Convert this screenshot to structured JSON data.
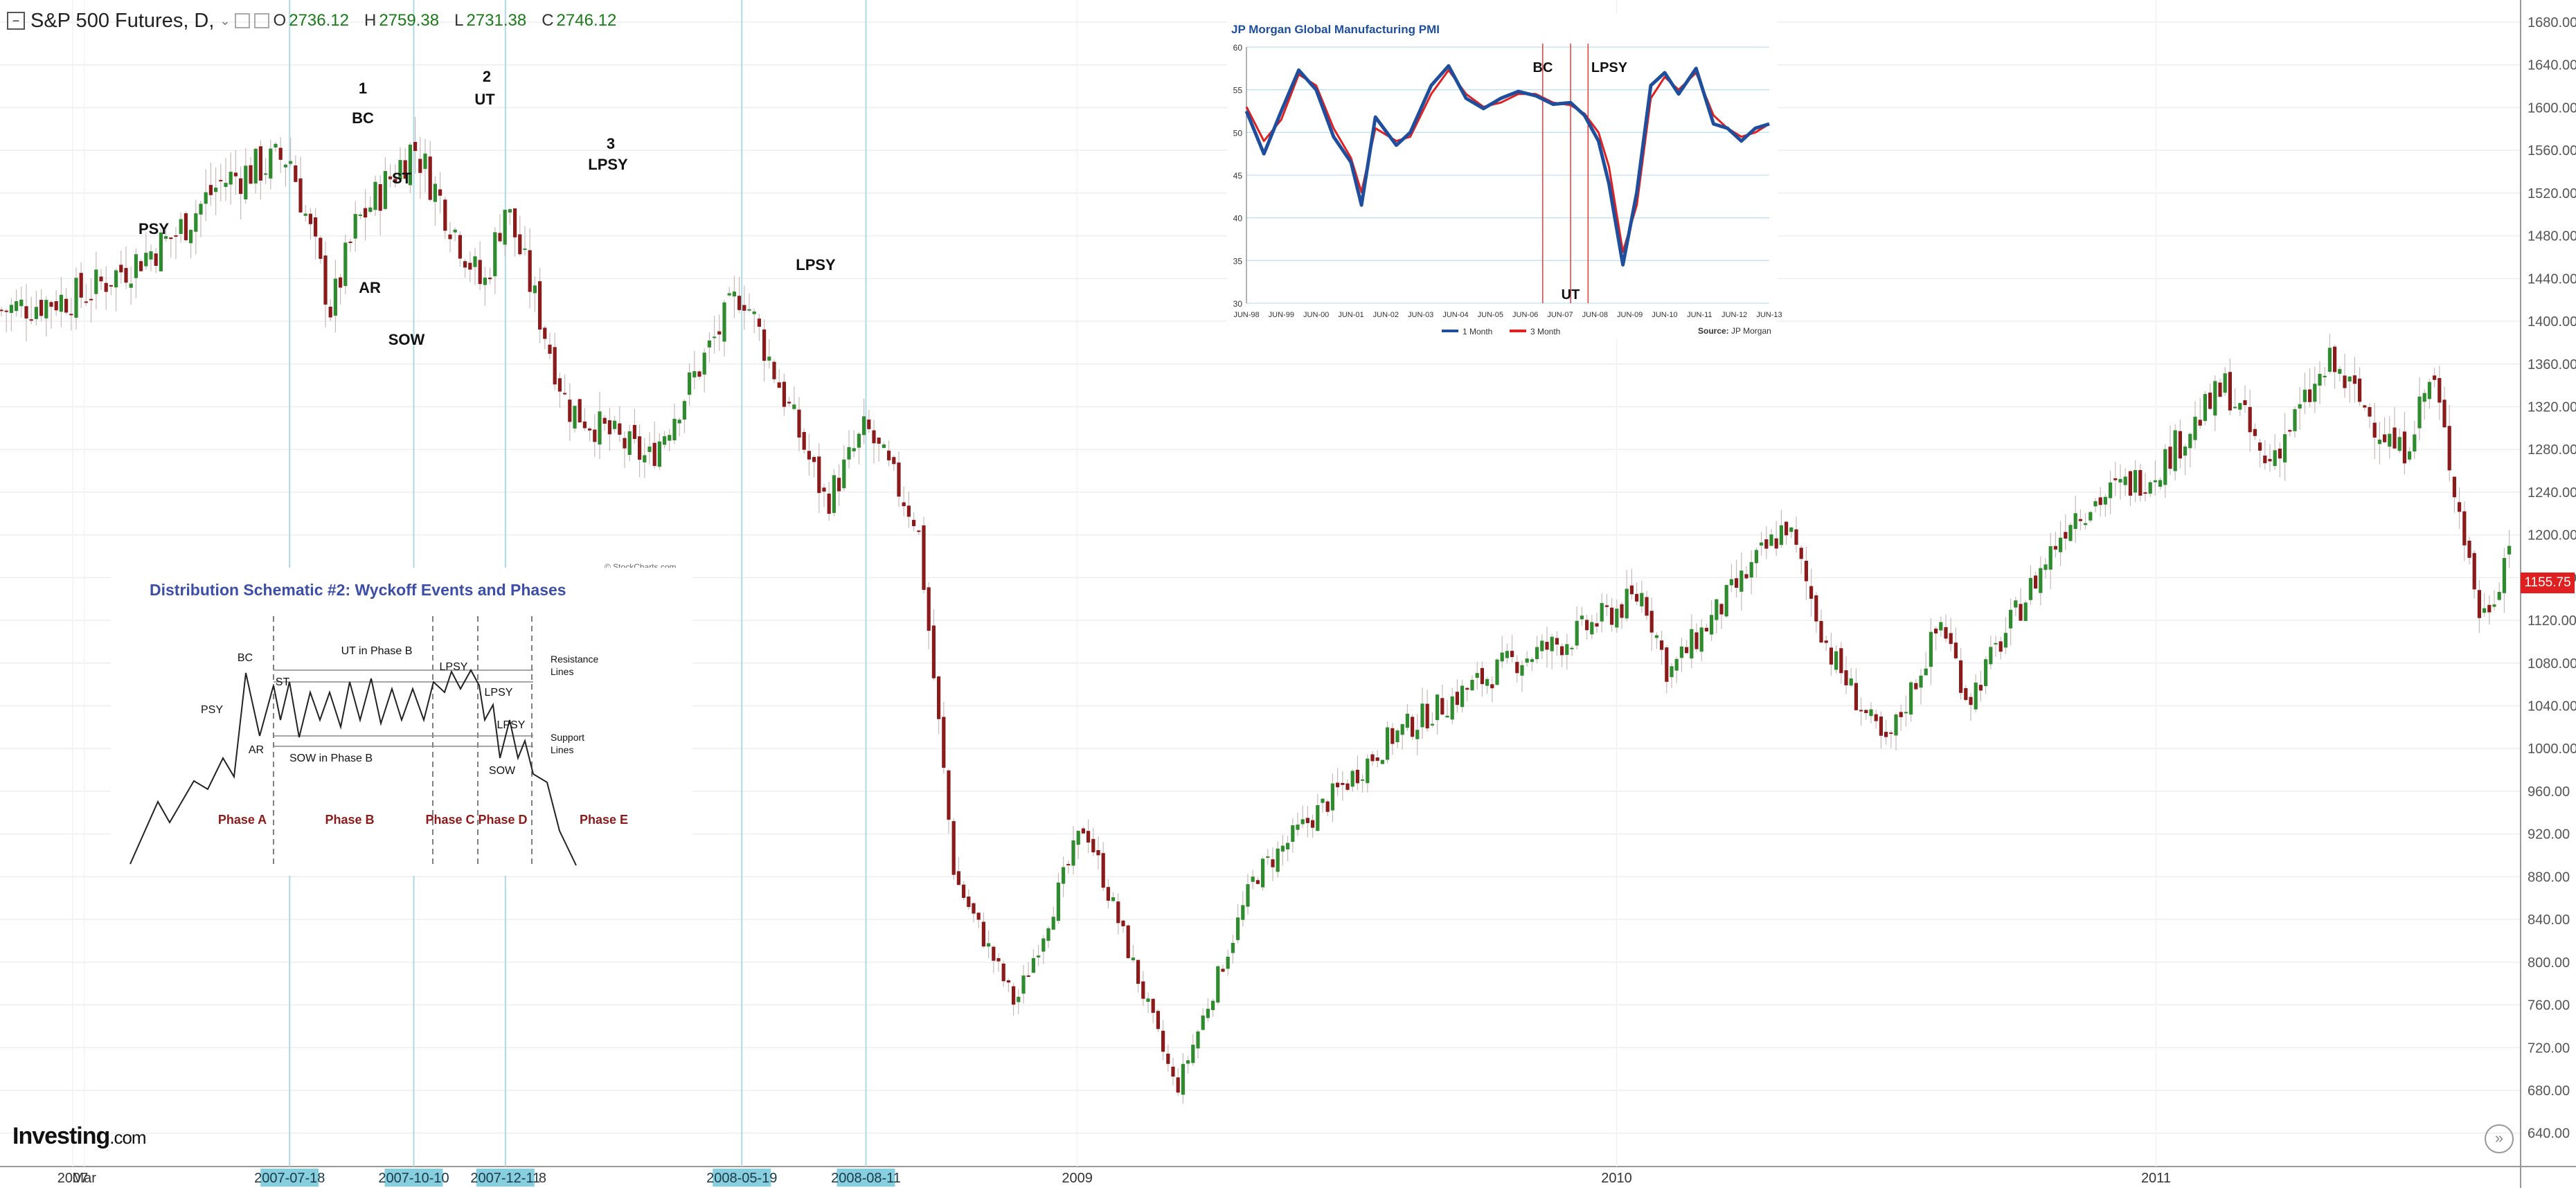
{
  "header": {
    "title": "S&P 500 Futures, D,",
    "open_label": "O",
    "open": "2736.12",
    "high_label": "H",
    "high": "2759.38",
    "low_label": "L",
    "low": "2731.38",
    "close_label": "C",
    "close": "2746.12"
  },
  "logo": {
    "main": "Investing",
    "suffix": ".com"
  },
  "last_price": "1155.75",
  "colors": {
    "up": "#2e8b2e",
    "down": "#8b1a1a",
    "accent": "#e02020",
    "tag": "#87cedf",
    "vline": "#add8e6"
  },
  "chart_data": [
    {
      "type": "candlestick",
      "name_visible": "S&P 500 Futures, D,",
      "ylim": [
        620,
        1700
      ],
      "yticks": [
        "1680.00",
        "1640.00",
        "1600.00",
        "1560.00",
        "1520.00",
        "1480.00",
        "1440.00",
        "1400.00",
        "1360.00",
        "1320.00",
        "1280.00",
        "1240.00",
        "1200.00",
        "1160.00",
        "1120.00",
        "1080.00",
        "1040.00",
        "1000.00",
        "960.00",
        "920.00",
        "880.00",
        "840.00",
        "800.00",
        "760.00",
        "720.00",
        "680.00",
        "640.00"
      ],
      "xticks": [
        "2007",
        "Mar",
        "2009",
        "2010",
        "2011"
      ],
      "date_tags": [
        "2007-07-18",
        "2007-10-10",
        "2007-12-11",
        "2008-05-19",
        "2008-08-11"
      ],
      "date_tag_tail": "8",
      "x": [
        "2007-01-03",
        "2007-03-01",
        "2007-05-01",
        "2007-06-01",
        "2007-07-18",
        "2007-08-15",
        "2007-09-01",
        "2007-10-10",
        "2007-11-26",
        "2007-12-11",
        "2008-01-22",
        "2008-03-17",
        "2008-05-19",
        "2008-07-15",
        "2008-08-11",
        "2008-09-15",
        "2008-10-10",
        "2008-11-20",
        "2009-01-06",
        "2009-03-09",
        "2009-05-01",
        "2009-06-12",
        "2009-08-01",
        "2009-10-20",
        "2009-11-26",
        "2010-01-19",
        "2010-02-05",
        "2010-04-26",
        "2010-05-25",
        "2010-07-02",
        "2010-08-09",
        "2010-08-27",
        "2010-11-05",
        "2010-12-31",
        "2011-02-18",
        "2011-03-16",
        "2011-04-29",
        "2011-06-16",
        "2011-07-07",
        "2011-08-09",
        "2011-08-19",
        "2011-09-01"
      ],
      "close": [
        1410,
        1425,
        1480,
        1530,
        1555,
        1410,
        1490,
        1565,
        1430,
        1510,
        1320,
        1270,
        1430,
        1230,
        1300,
        1210,
        880,
        760,
        930,
        680,
        880,
        940,
        1010,
        1080,
        1100,
        1145,
        1070,
        1210,
        1090,
        1000,
        1120,
        1045,
        1220,
        1260,
        1340,
        1265,
        1360,
        1275,
        1350,
        1120,
        1150,
        1215
      ],
      "annotations": [
        "PSY",
        "1",
        "BC",
        "ST",
        "AR",
        "SOW",
        "2",
        "UT",
        "3",
        "LPSY",
        "LPSY"
      ],
      "watermark": "© StockCharts.com"
    },
    {
      "type": "line",
      "title": "JP Morgan Global Manufacturing PMI",
      "ylim": [
        30,
        60
      ],
      "yticks": [
        "60",
        "55",
        "50",
        "45",
        "40",
        "35",
        "30"
      ],
      "xticks": [
        "JUN-98",
        "JUN-99",
        "JUN-00",
        "JUN-01",
        "JUN-02",
        "JUN-03",
        "JUN-04",
        "JUN-05",
        "JUN-06",
        "JUN-07",
        "JUN-08",
        "JUN-09",
        "JUN-10",
        "JUN-11",
        "JUN-12",
        "JUN-13"
      ],
      "x": [
        1998.5,
        1999.0,
        1999.5,
        2000.0,
        2000.5,
        2001.0,
        2001.5,
        2001.8,
        2002.2,
        2002.8,
        2003.2,
        2003.8,
        2004.3,
        2004.8,
        2005.3,
        2005.8,
        2006.3,
        2006.8,
        2007.3,
        2007.8,
        2008.2,
        2008.6,
        2008.9,
        2009.3,
        2009.7,
        2010.1,
        2010.5,
        2010.9,
        2011.4,
        2011.9,
        2012.3,
        2012.7,
        2013.1,
        2013.5
      ],
      "series": [
        {
          "name": "1 Month",
          "color": "#1f4e9c",
          "values": [
            52.5,
            47.5,
            52.5,
            57.3,
            55.0,
            49.5,
            46.5,
            41.5,
            51.8,
            48.5,
            50.0,
            55.5,
            57.8,
            54.0,
            52.8,
            54.0,
            54.8,
            54.3,
            53.3,
            53.5,
            52.0,
            49.0,
            44.0,
            34.5,
            43.0,
            55.5,
            57.0,
            54.5,
            57.5,
            51.0,
            50.5,
            49.0,
            50.5,
            51.0
          ]
        },
        {
          "name": "3 Month",
          "color": "#e02020",
          "values": [
            53.0,
            49.0,
            51.5,
            56.8,
            55.5,
            50.5,
            47.0,
            43.0,
            50.5,
            49.0,
            49.5,
            54.5,
            57.3,
            54.5,
            53.0,
            53.5,
            54.5,
            54.5,
            53.5,
            53.2,
            52.2,
            50.0,
            46.0,
            36.0,
            41.5,
            54.0,
            56.5,
            55.0,
            57.0,
            52.0,
            50.5,
            49.5,
            50.0,
            51.0
          ]
        }
      ],
      "annotations": [
        "BC",
        "UT",
        "LPSY"
      ],
      "source_label": "Source:",
      "source_name": "JP Morgan"
    },
    {
      "type": "schematic",
      "title": "Distribution Schematic #2: Wyckoff Events and Phases",
      "events": [
        "BC",
        "UT in Phase B",
        "LPSY",
        "PSY",
        "ST",
        "AR",
        "SOW in Phase B",
        "LPSY",
        "LPSY",
        "SOW"
      ],
      "side_labels": [
        "Resistance\nLines",
        "Support\nLines"
      ],
      "phases": [
        "Phase A",
        "Phase B",
        "Phase C",
        "Phase D",
        "Phase E"
      ]
    }
  ]
}
